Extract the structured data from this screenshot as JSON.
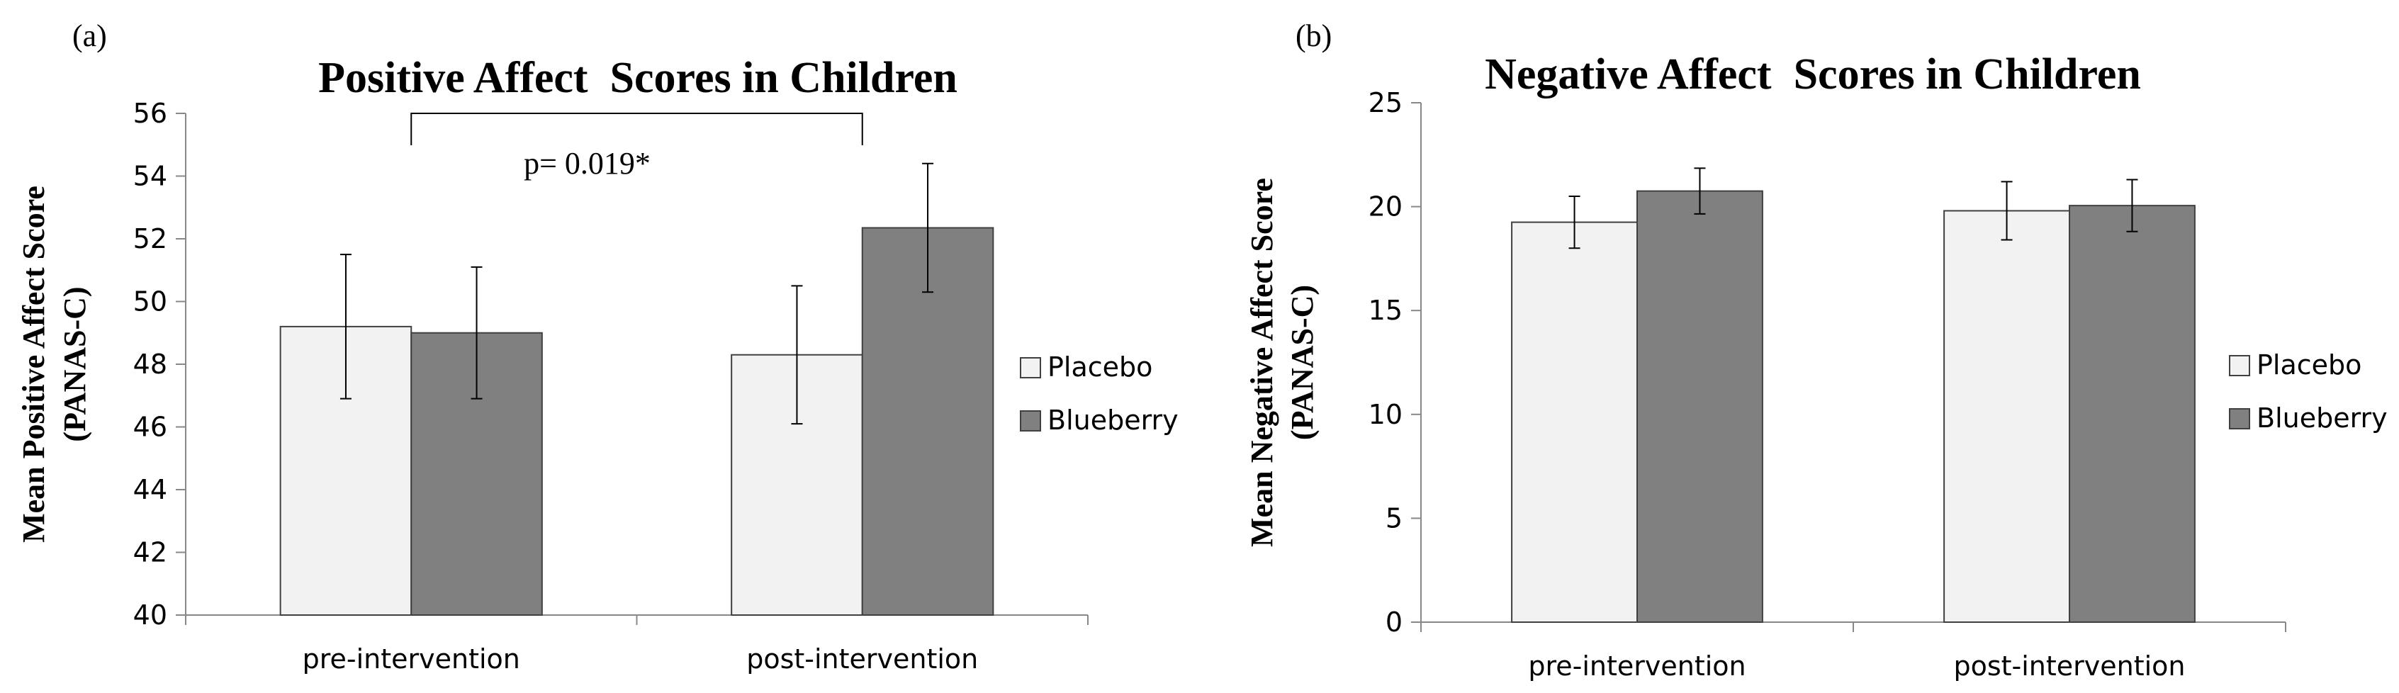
{
  "chart_data": [
    {
      "type": "bar",
      "panel_label": "(a)",
      "title": "Positive Affect  Scores in Children",
      "ylabel_line1": "Mean Positive Affect Score",
      "ylabel_line2": "(PANAS-C)",
      "xlabel": "",
      "categories": [
        "pre-intervention",
        "post-intervention"
      ],
      "ylim": [
        40,
        56
      ],
      "yticks": [
        40,
        42,
        44,
        46,
        48,
        50,
        52,
        54,
        56
      ],
      "series": [
        {
          "name": "Placebo",
          "color": "#f2f2f2",
          "values": [
            49.2,
            48.3
          ],
          "errors": [
            2.3,
            2.2
          ]
        },
        {
          "name": "Blueberry",
          "color": "#808080",
          "values": [
            49.0,
            52.35
          ],
          "errors": [
            2.1,
            2.05
          ]
        }
      ],
      "annotation": {
        "text": "p= 0.019*",
        "from_category": 0,
        "to_category": 1
      },
      "legend": "right"
    },
    {
      "type": "bar",
      "panel_label": "(b)",
      "title": "Negative Affect  Scores in Children",
      "ylabel_line1": "Mean Negative Affect Score",
      "ylabel_line2": "(PANAS-C)",
      "xlabel": "",
      "categories": [
        "pre-intervention",
        "post-intervention"
      ],
      "ylim": [
        0,
        25
      ],
      "yticks": [
        0,
        5,
        10,
        15,
        20,
        25
      ],
      "series": [
        {
          "name": "Placebo",
          "color": "#f2f2f2",
          "values": [
            19.25,
            19.8
          ],
          "errors": [
            1.25,
            1.4
          ]
        },
        {
          "name": "Blueberry",
          "color": "#808080",
          "values": [
            20.75,
            20.05
          ],
          "errors": [
            1.1,
            1.25
          ]
        }
      ],
      "legend": "right"
    }
  ]
}
